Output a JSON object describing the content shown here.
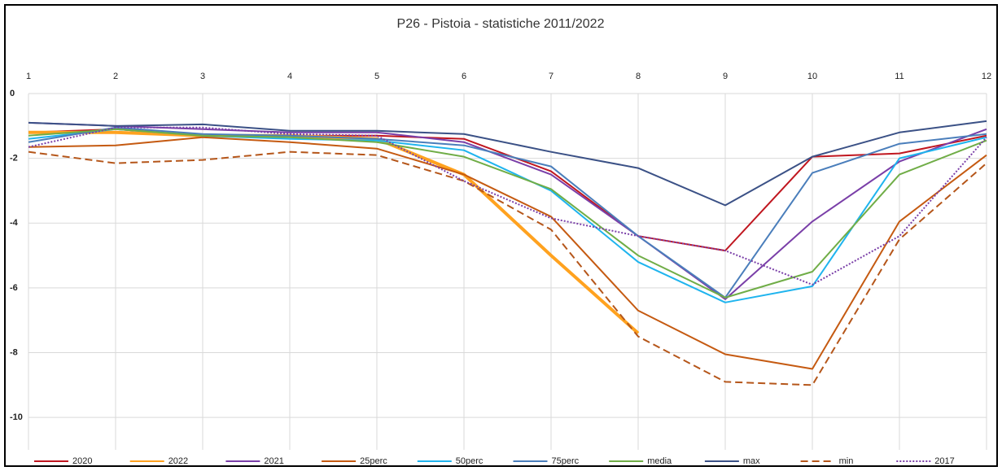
{
  "chart_data": {
    "type": "line",
    "title": "P26 - Pistoia - statistiche 2011/2022",
    "x": [
      1,
      2,
      3,
      4,
      5,
      6,
      7,
      8,
      9,
      10,
      11,
      12
    ],
    "xlim": [
      1,
      12
    ],
    "xticks": [
      1,
      2,
      3,
      4,
      5,
      6,
      7,
      8,
      9,
      10,
      11,
      12
    ],
    "ylim": [
      -11,
      0
    ],
    "yticks": [
      0,
      -2,
      -4,
      -6,
      -8,
      -10
    ],
    "grid": true,
    "legend": "bottom",
    "series": [
      {
        "name": "2020",
        "color": "#c0161f",
        "values": [
          -1.2,
          -1.1,
          -1.3,
          -1.3,
          -1.3,
          -1.4,
          -2.4,
          -4.4,
          -4.85,
          -1.95,
          -1.85,
          -1.3
        ]
      },
      {
        "name": "2022",
        "color": "#ffa21f",
        "line_width": 4,
        "values": [
          -1.2,
          -1.2,
          -1.3,
          -1.3,
          -1.4,
          -2.5,
          -5.0,
          -7.4,
          null,
          null,
          null,
          null
        ]
      },
      {
        "name": "2021",
        "color": "#7a3fa8",
        "values": [
          -0.9,
          -1.0,
          -1.1,
          -1.2,
          -1.2,
          -1.5,
          -2.5,
          -4.4,
          -6.35,
          -3.95,
          -2.1,
          -1.1
        ]
      },
      {
        "name": "25perc",
        "color": "#c55a11",
        "values": [
          -1.65,
          -1.6,
          -1.35,
          -1.5,
          -1.7,
          -2.5,
          -3.8,
          -6.7,
          -8.05,
          -8.5,
          -3.95,
          -1.9
        ]
      },
      {
        "name": "50perc",
        "color": "#1fb4ee",
        "values": [
          -1.4,
          -1.1,
          -1.3,
          -1.4,
          -1.45,
          -1.75,
          -3.0,
          -5.2,
          -6.45,
          -5.95,
          -2.0,
          -1.35
        ]
      },
      {
        "name": "75perc",
        "color": "#4a7ebb",
        "values": [
          -1.5,
          -1.05,
          -1.25,
          -1.3,
          -1.4,
          -1.6,
          -2.25,
          -4.4,
          -6.3,
          -2.45,
          -1.55,
          -1.25
        ]
      },
      {
        "name": "media",
        "color": "#70ad47",
        "values": [
          -1.3,
          -1.1,
          -1.3,
          -1.35,
          -1.5,
          -1.95,
          -2.95,
          -5.0,
          -6.3,
          -5.5,
          -2.5,
          -1.45
        ]
      },
      {
        "name": "max",
        "color": "#3b5186",
        "values": [
          -0.9,
          -1.0,
          -0.95,
          -1.15,
          -1.15,
          -1.25,
          -1.8,
          -2.3,
          -3.45,
          -1.95,
          -1.2,
          -0.85
        ]
      },
      {
        "name": "min",
        "color": "#b5561a",
        "dash": "dashed",
        "values": [
          -1.8,
          -2.15,
          -2.05,
          -1.8,
          -1.9,
          -2.7,
          -4.2,
          -7.5,
          -8.9,
          -9.0,
          -4.5,
          -2.15
        ]
      },
      {
        "name": "2017",
        "color": "#7a3fa8",
        "dash": "dotted",
        "values": [
          -1.65,
          -1.05,
          -1.05,
          -1.25,
          -1.3,
          -2.7,
          -3.85,
          -4.4,
          -4.85,
          -5.9,
          -4.4,
          -1.35
        ]
      }
    ]
  }
}
